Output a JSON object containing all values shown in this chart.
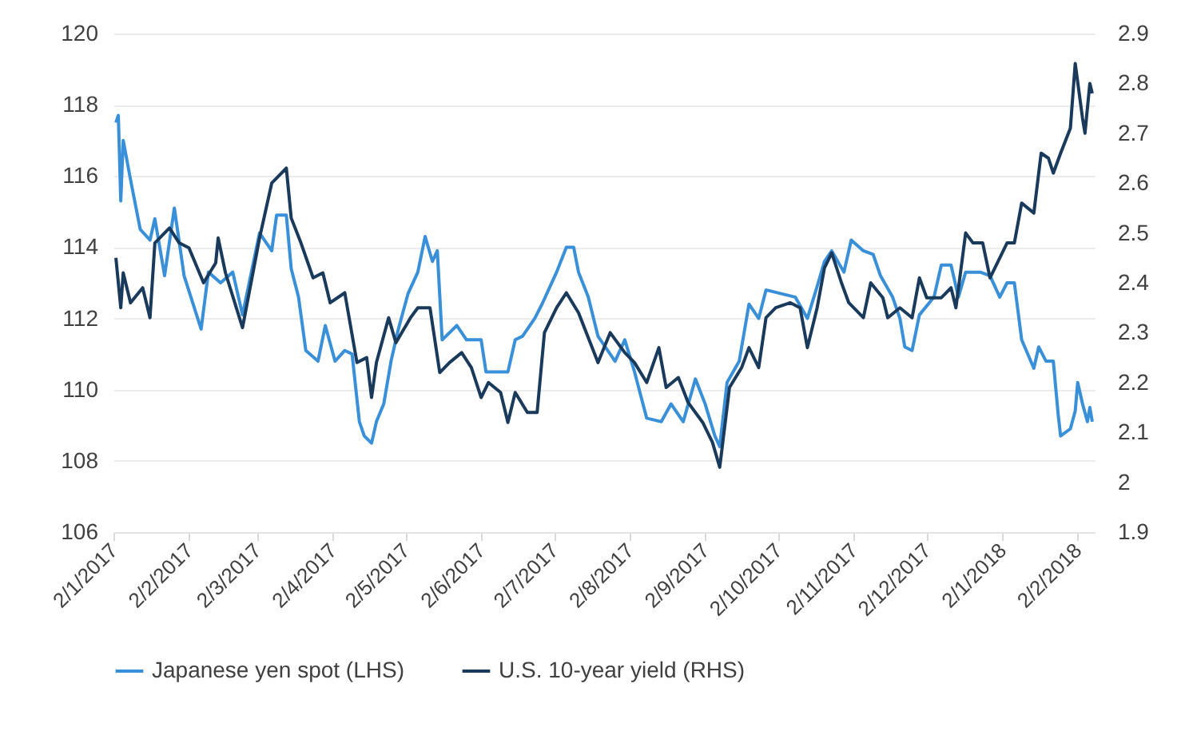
{
  "chart_data": {
    "type": "line",
    "legend": "bottom",
    "grid": "y",
    "line_style": "solid",
    "marker": "none",
    "xlim": [
      "2017-01-02",
      "2018-02-09"
    ],
    "xticks": [
      {
        "value": "2017-01-02",
        "label": "2/1/2017"
      },
      {
        "value": "2017-02-02",
        "label": "2/2/2017"
      },
      {
        "value": "2017-03-02",
        "label": "2/3/2017"
      },
      {
        "value": "2017-04-02",
        "label": "2/4/2017"
      },
      {
        "value": "2017-05-02",
        "label": "2/5/2017"
      },
      {
        "value": "2017-06-02",
        "label": "2/6/2017"
      },
      {
        "value": "2017-07-02",
        "label": "2/7/2017"
      },
      {
        "value": "2017-08-02",
        "label": "2/8/2017"
      },
      {
        "value": "2017-09-02",
        "label": "2/9/2017"
      },
      {
        "value": "2017-10-02",
        "label": "2/10/2017"
      },
      {
        "value": "2017-11-02",
        "label": "2/11/2017"
      },
      {
        "value": "2017-12-02",
        "label": "2/12/2017"
      },
      {
        "value": "2018-01-02",
        "label": "2/1/2018"
      },
      {
        "value": "2018-02-02",
        "label": "2/2/2018"
      }
    ],
    "ylim": [
      106,
      120
    ],
    "yticks": [
      106,
      108,
      110,
      112,
      114,
      116,
      118,
      120
    ],
    "y2lim": [
      1.9,
      2.9
    ],
    "y2ticks": [
      1.9,
      2,
      2.1,
      2.2,
      2.3,
      2.4,
      2.5,
      2.6,
      2.7,
      2.8,
      2.9
    ],
    "series": [
      {
        "name": "Japanese yen spot  (LHS)",
        "color": "#3a8fd9",
        "x": [
          "2017-01-03",
          "2017-01-04",
          "2017-01-05",
          "2017-01-06",
          "2017-01-09",
          "2017-01-13",
          "2017-01-17",
          "2017-01-19",
          "2017-01-23",
          "2017-01-27",
          "2017-01-31",
          "2017-02-07",
          "2017-02-10",
          "2017-02-15",
          "2017-02-20",
          "2017-02-24",
          "2017-03-03",
          "2017-03-08",
          "2017-03-10",
          "2017-03-14",
          "2017-03-16",
          "2017-03-19",
          "2017-03-22",
          "2017-03-27",
          "2017-03-30",
          "2017-04-03",
          "2017-04-07",
          "2017-04-10",
          "2017-04-13",
          "2017-04-15",
          "2017-04-18",
          "2017-04-20",
          "2017-04-23",
          "2017-04-26",
          "2017-04-29",
          "2017-05-03",
          "2017-05-07",
          "2017-05-10",
          "2017-05-13",
          "2017-05-15",
          "2017-05-17",
          "2017-05-23",
          "2017-05-27",
          "2017-06-02",
          "2017-06-04",
          "2017-06-08",
          "2017-06-13",
          "2017-06-16",
          "2017-06-19",
          "2017-06-24",
          "2017-06-27",
          "2017-07-03",
          "2017-07-07",
          "2017-07-10",
          "2017-07-12",
          "2017-07-16",
          "2017-07-20",
          "2017-07-27",
          "2017-07-31",
          "2017-08-04",
          "2017-08-09",
          "2017-08-15",
          "2017-08-19",
          "2017-08-24",
          "2017-08-29",
          "2017-09-02",
          "2017-09-06",
          "2017-09-08",
          "2017-09-11",
          "2017-09-16",
          "2017-09-20",
          "2017-09-24",
          "2017-09-27",
          "2017-10-03",
          "2017-10-09",
          "2017-10-14",
          "2017-10-18",
          "2017-10-21",
          "2017-10-24",
          "2017-10-29",
          "2017-11-01",
          "2017-11-06",
          "2017-11-10",
          "2017-11-13",
          "2017-11-18",
          "2017-11-21",
          "2017-11-23",
          "2017-11-26",
          "2017-11-29",
          "2017-12-05",
          "2017-12-08",
          "2017-12-12",
          "2017-12-15",
          "2017-12-18",
          "2017-12-24",
          "2017-12-28",
          "2018-01-01",
          "2018-01-04",
          "2018-01-07",
          "2018-01-10",
          "2018-01-15",
          "2018-01-17",
          "2018-01-20",
          "2018-01-23",
          "2018-01-25",
          "2018-01-26",
          "2018-01-30",
          "2018-02-01",
          "2018-02-02",
          "2018-02-04",
          "2018-02-06",
          "2018-02-07",
          "2018-02-08"
        ],
        "values": [
          117.5,
          117.7,
          115.3,
          117.0,
          115.9,
          114.5,
          114.2,
          114.8,
          113.2,
          115.1,
          113.2,
          111.7,
          113.3,
          113.0,
          113.3,
          112.1,
          114.4,
          113.9,
          114.9,
          114.9,
          113.4,
          112.6,
          111.1,
          110.8,
          111.8,
          110.8,
          111.1,
          111.0,
          109.1,
          108.7,
          108.5,
          109.1,
          109.6,
          110.8,
          111.7,
          112.7,
          113.3,
          114.3,
          113.6,
          113.9,
          111.4,
          111.8,
          111.4,
          111.4,
          110.5,
          110.5,
          110.5,
          111.4,
          111.5,
          112.0,
          112.4,
          113.3,
          114.0,
          114.0,
          113.3,
          112.6,
          111.5,
          110.8,
          111.4,
          110.5,
          109.2,
          109.1,
          109.6,
          109.1,
          110.3,
          109.6,
          108.7,
          108.4,
          110.2,
          110.8,
          112.4,
          112.0,
          112.8,
          112.7,
          112.6,
          112.0,
          112.9,
          113.6,
          113.9,
          113.3,
          114.2,
          113.9,
          113.8,
          113.2,
          112.6,
          112.0,
          111.2,
          111.1,
          112.1,
          112.6,
          113.5,
          113.5,
          112.6,
          113.3,
          113.3,
          113.2,
          112.6,
          113.0,
          113.0,
          111.4,
          110.6,
          111.2,
          110.8,
          110.8,
          109.3,
          108.7,
          108.9,
          109.4,
          110.2,
          109.6,
          109.1,
          109.5,
          109.1
        ]
      },
      {
        "name": "U.S. 10-year yield (RHS)",
        "color": "#1a3a5c",
        "axis": "y2",
        "x": [
          "2017-01-03",
          "2017-01-05",
          "2017-01-06",
          "2017-01-09",
          "2017-01-14",
          "2017-01-17",
          "2017-01-19",
          "2017-01-25",
          "2017-01-29",
          "2017-02-02",
          "2017-02-08",
          "2017-02-13",
          "2017-02-14",
          "2017-02-17",
          "2017-02-24",
          "2017-03-03",
          "2017-03-08",
          "2017-03-14",
          "2017-03-16",
          "2017-03-20",
          "2017-03-25",
          "2017-03-29",
          "2017-04-01",
          "2017-04-07",
          "2017-04-12",
          "2017-04-16",
          "2017-04-18",
          "2017-04-20",
          "2017-04-25",
          "2017-04-28",
          "2017-05-04",
          "2017-05-07",
          "2017-05-12",
          "2017-05-16",
          "2017-05-20",
          "2017-05-25",
          "2017-05-29",
          "2017-06-02",
          "2017-06-05",
          "2017-06-10",
          "2017-06-13",
          "2017-06-16",
          "2017-06-21",
          "2017-06-25",
          "2017-06-28",
          "2017-07-03",
          "2017-07-07",
          "2017-07-12",
          "2017-07-20",
          "2017-07-25",
          "2017-07-31",
          "2017-08-04",
          "2017-08-09",
          "2017-08-14",
          "2017-08-17",
          "2017-08-22",
          "2017-08-26",
          "2017-09-01",
          "2017-09-05",
          "2017-09-08",
          "2017-09-12",
          "2017-09-17",
          "2017-09-20",
          "2017-09-24",
          "2017-09-27",
          "2017-10-01",
          "2017-10-07",
          "2017-10-11",
          "2017-10-14",
          "2017-10-18",
          "2017-10-21",
          "2017-10-24",
          "2017-10-28",
          "2017-10-31",
          "2017-11-06",
          "2017-11-09",
          "2017-11-14",
          "2017-11-16",
          "2017-11-21",
          "2017-11-26",
          "2017-11-29",
          "2017-12-02",
          "2017-12-08",
          "2017-12-12",
          "2017-12-14",
          "2017-12-18",
          "2017-12-21",
          "2017-12-25",
          "2017-12-28",
          "2018-01-01",
          "2018-01-04",
          "2018-01-07",
          "2018-01-10",
          "2018-01-15",
          "2018-01-18",
          "2018-01-21",
          "2018-01-23",
          "2018-01-26",
          "2018-01-30",
          "2018-02-01",
          "2018-02-04",
          "2018-02-05",
          "2018-02-07",
          "2018-02-08"
        ],
        "values": [
          2.45,
          2.35,
          2.42,
          2.36,
          2.39,
          2.33,
          2.48,
          2.51,
          2.48,
          2.47,
          2.4,
          2.44,
          2.49,
          2.42,
          2.31,
          2.49,
          2.6,
          2.63,
          2.53,
          2.48,
          2.41,
          2.42,
          2.36,
          2.38,
          2.24,
          2.25,
          2.17,
          2.24,
          2.33,
          2.28,
          2.33,
          2.35,
          2.35,
          2.22,
          2.24,
          2.26,
          2.23,
          2.17,
          2.2,
          2.18,
          2.12,
          2.18,
          2.14,
          2.14,
          2.3,
          2.35,
          2.38,
          2.34,
          2.24,
          2.3,
          2.26,
          2.24,
          2.2,
          2.27,
          2.19,
          2.21,
          2.16,
          2.12,
          2.08,
          2.03,
          2.19,
          2.23,
          2.27,
          2.23,
          2.33,
          2.35,
          2.36,
          2.35,
          2.27,
          2.35,
          2.43,
          2.46,
          2.4,
          2.36,
          2.33,
          2.4,
          2.37,
          2.33,
          2.35,
          2.33,
          2.41,
          2.37,
          2.37,
          2.39,
          2.35,
          2.5,
          2.48,
          2.48,
          2.41,
          2.45,
          2.48,
          2.48,
          2.56,
          2.54,
          2.66,
          2.65,
          2.62,
          2.66,
          2.71,
          2.84,
          2.73,
          2.7,
          2.8,
          2.78
        ]
      }
    ]
  }
}
